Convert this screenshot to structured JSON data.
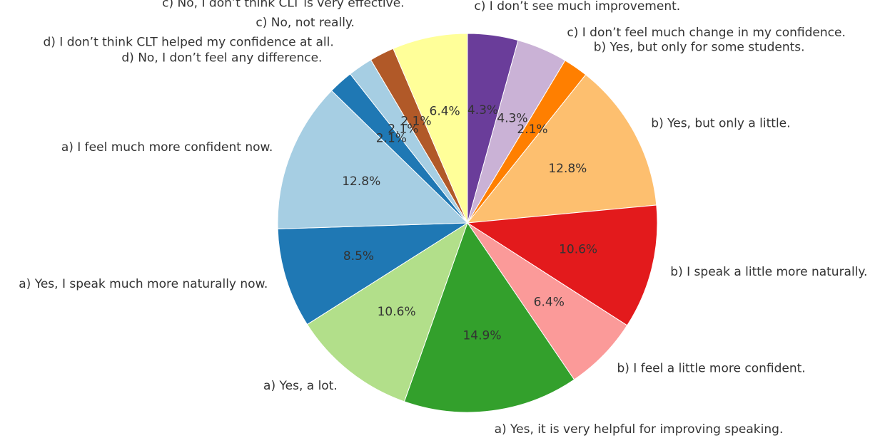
{
  "chart_data": {
    "type": "pie",
    "start_angle_deg": 90,
    "direction": "clockwise",
    "slices": [
      {
        "label": "c) I don’t see much improvement.",
        "value": 4.3,
        "pct_text": "4.3%",
        "color": "#6a3d9a"
      },
      {
        "label": "c) I don’t feel much change in my confidence.",
        "value": 4.3,
        "pct_text": "4.3%",
        "color": "#cab2d6"
      },
      {
        "label": "b) Yes, but only for some students.",
        "value": 2.1,
        "pct_text": "2.1%",
        "color": "#ff7f00"
      },
      {
        "label": "b) Yes, but only a little.",
        "value": 12.8,
        "pct_text": "12.8%",
        "color": "#fdbf6f"
      },
      {
        "label": "b) I speak a little more naturally.",
        "value": 10.6,
        "pct_text": "10.6%",
        "color": "#e31a1c"
      },
      {
        "label": "b) I feel a little more confident.",
        "value": 6.4,
        "pct_text": "6.4%",
        "color": "#fb9a99"
      },
      {
        "label": "a) Yes, it is very helpful for improving speaking.",
        "value": 14.9,
        "pct_text": "14.9%",
        "color": "#33a02c"
      },
      {
        "label": "a) Yes, a lot.",
        "value": 10.6,
        "pct_text": "10.6%",
        "color": "#b2df8a"
      },
      {
        "label": "a) Yes, I speak much more naturally now.",
        "value": 8.5,
        "pct_text": "8.5%",
        "color": "#1f78b4"
      },
      {
        "label": "a) I feel much more confident now.",
        "value": 12.8,
        "pct_text": "12.8%",
        "color": "#a6cee3"
      },
      {
        "label": "d) No, I don’t feel any difference.",
        "value": 2.1,
        "pct_text": "2.1%",
        "color": "#1f78b4"
      },
      {
        "label": "d) I don’t think CLT helped my confidence at all.",
        "value": 2.1,
        "pct_text": "2.1%",
        "color": "#a6cee3"
      },
      {
        "label": "c) No, not really.",
        "value": 2.1,
        "pct_text": "2.1%",
        "color": "#b15928"
      },
      {
        "label": "c) No, I don’t think CLT is very effective.",
        "value": 6.4,
        "pct_text": "6.4%",
        "color": "#ffff99"
      }
    ]
  }
}
